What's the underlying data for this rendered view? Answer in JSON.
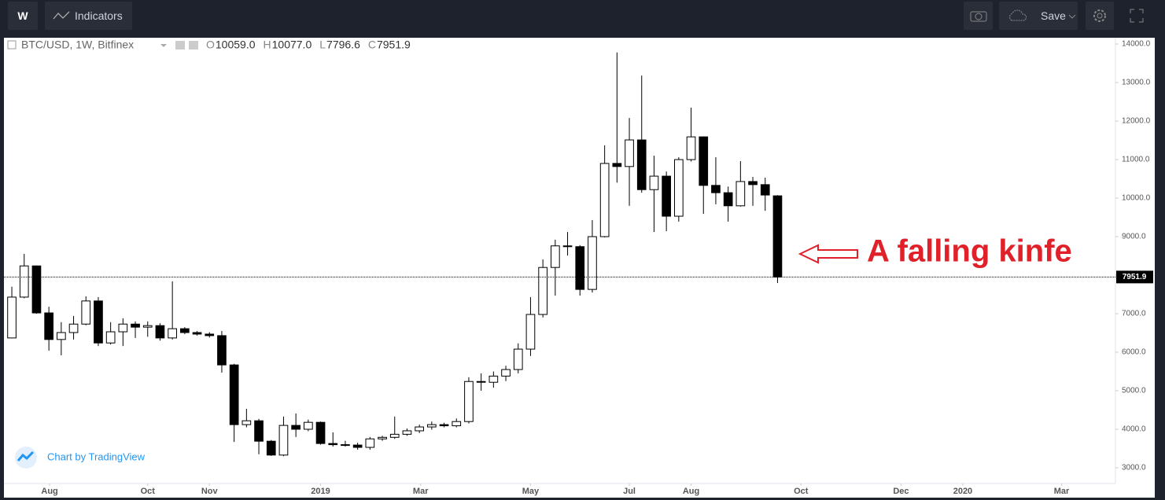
{
  "toolbar": {
    "interval": "W",
    "indicators": "Indicators",
    "save": "Save"
  },
  "chart_data": {
    "type": "candlestick",
    "legend": {
      "symbol": "BTC/USD, 1W, Bitfinex",
      "fields": [
        {
          "key": "O",
          "text": "10059.0"
        },
        {
          "key": "H",
          "text": "10077.0"
        },
        {
          "key": "L",
          "text": "7796.6"
        },
        {
          "key": "C",
          "text": "7951.9"
        }
      ]
    },
    "open": [
      6370,
      7430,
      8240,
      7020,
      6330,
      6510,
      6730,
      7330,
      6240,
      6530,
      6730,
      6650,
      6690,
      6370,
      6610,
      6510,
      6470,
      6430,
      5670,
      4120,
      4220,
      3690,
      3330,
      4100,
      4000,
      4180,
      3630,
      3600,
      3590,
      3530,
      3750,
      3790,
      3870,
      3960,
      4060,
      4120,
      4090,
      4200,
      5240,
      5220,
      5380,
      5550,
      6080,
      6980,
      8200,
      8760,
      8740,
      7630,
      9000,
      10900,
      10820,
      11510,
      10220,
      10570,
      9530,
      11000,
      11590,
      10330,
      10140,
      9800,
      10430,
      10350,
      10059
    ],
    "high": [
      7700,
      8550,
      8250,
      7180,
      6780,
      6940,
      7450,
      7430,
      6780,
      6880,
      6800,
      6800,
      6750,
      7840,
      6650,
      6550,
      6520,
      6550,
      5700,
      4530,
      4270,
      3720,
      4330,
      4410,
      4250,
      4200,
      3920,
      3700,
      3650,
      3800,
      3830,
      4330,
      4020,
      4120,
      4200,
      4170,
      4280,
      5350,
      5450,
      5500,
      5650,
      6230,
      7430,
      8410,
      8920,
      9120,
      8780,
      9430,
      11370,
      13780,
      12080,
      13180,
      11100,
      10690,
      11060,
      12350,
      11600,
      11060,
      10300,
      10960,
      10550,
      10530,
      10077
    ],
    "low": [
      6360,
      7400,
      7000,
      6040,
      5920,
      6330,
      6700,
      6160,
      6200,
      6160,
      6370,
      6400,
      6300,
      6330,
      6470,
      6430,
      6380,
      5470,
      3670,
      4050,
      3350,
      3310,
      3300,
      3800,
      3950,
      3600,
      3550,
      3550,
      3470,
      3470,
      3700,
      3750,
      3830,
      3900,
      3990,
      4050,
      4050,
      4150,
      5000,
      5080,
      5250,
      5450,
      5900,
      6900,
      7470,
      8510,
      7470,
      7550,
      8980,
      10400,
      9800,
      10140,
      9120,
      9140,
      9390,
      10950,
      9590,
      9840,
      9390,
      9780,
      9800,
      9670,
      7796.6
    ],
    "close": [
      7430,
      8240,
      7020,
      6330,
      6510,
      6730,
      7330,
      6240,
      6530,
      6730,
      6650,
      6690,
      6370,
      6610,
      6510,
      6470,
      6430,
      5670,
      4120,
      4220,
      3690,
      3330,
      4100,
      4000,
      4180,
      3630,
      3600,
      3590,
      3530,
      3750,
      3790,
      3870,
      3960,
      4060,
      4120,
      4090,
      4200,
      5240,
      5220,
      5380,
      5550,
      6080,
      6980,
      8200,
      8760,
      8740,
      7630,
      9000,
      10900,
      10820,
      11510,
      10220,
      10570,
      9530,
      11000,
      11590,
      10330,
      10140,
      9800,
      10430,
      10350,
      10080,
      7951.9
    ],
    "up_color": "#ffffff",
    "down_color": "#000000",
    "border_color": "#000000",
    "ylim": [
      2592,
      14163
    ],
    "yticks": [
      {
        "value": 3000,
        "label": "3000.0"
      },
      {
        "value": 4000,
        "label": "4000.0"
      },
      {
        "value": 5000,
        "label": "5000.0"
      },
      {
        "value": 6000,
        "label": "6000.0"
      },
      {
        "value": 7000,
        "label": "7000.0"
      },
      {
        "value": 8000,
        "label": "8000.0"
      },
      {
        "value": 9000,
        "label": "9000.0"
      },
      {
        "value": 10000,
        "label": "10000.0"
      },
      {
        "value": 11000,
        "label": "11000.0"
      },
      {
        "value": 12000,
        "label": "12000.0"
      },
      {
        "value": 13000,
        "label": "13000.0"
      },
      {
        "value": 14000,
        "label": "14000.0"
      }
    ],
    "xlim": [
      -0.64,
      89.36
    ],
    "xticks": [
      {
        "value": 3.06,
        "label": "Aug"
      },
      {
        "value": 11,
        "label": "Oct"
      },
      {
        "value": 16,
        "label": "Nov"
      },
      {
        "value": 25,
        "label": "2019"
      },
      {
        "value": 33.1,
        "label": "Mar"
      },
      {
        "value": 42,
        "label": "May"
      },
      {
        "value": 50,
        "label": "Jul"
      },
      {
        "value": 55,
        "label": "Aug"
      },
      {
        "value": 63.9,
        "label": "Oct"
      },
      {
        "value": 72,
        "label": "Dec"
      },
      {
        "value": 77,
        "label": "2020"
      },
      {
        "value": 85,
        "label": "Mar"
      }
    ],
    "last_price": {
      "value": 7951.9,
      "label": "7951.9"
    },
    "grid": false,
    "annotation": "A falling kinfe",
    "watermark": "Chart by TradingView"
  }
}
